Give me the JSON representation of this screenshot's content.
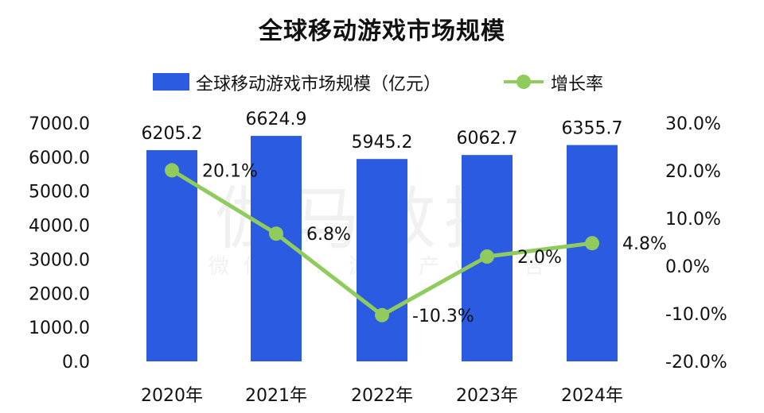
{
  "chart_data": {
    "type": "bar",
    "title": "全球移动游戏市场规模",
    "categories": [
      "2020年",
      "2021年",
      "2022年",
      "2023年",
      "2024年"
    ],
    "series": [
      {
        "name": "全球移动游戏市场规模（亿元）",
        "type": "bar",
        "axis": "left",
        "values": [
          6205.2,
          6624.9,
          5945.2,
          6062.7,
          6355.7
        ],
        "labels": [
          "6205.2",
          "6624.9",
          "5945.2",
          "6062.7",
          "6355.7"
        ],
        "color": "#2a5be0"
      },
      {
        "name": "增长率",
        "type": "line",
        "axis": "right",
        "values": [
          20.1,
          6.8,
          -10.3,
          2.0,
          4.8
        ],
        "labels": [
          "20.1%",
          "6.8%",
          "-10.3%",
          "2.0%",
          "4.8%"
        ],
        "color": "#8fcb5d"
      }
    ],
    "y_left": {
      "range": [
        0,
        7000
      ],
      "ticks": [
        0,
        1000,
        2000,
        3000,
        4000,
        5000,
        6000,
        7000
      ],
      "tick_labels": [
        "0.0",
        "1000.0",
        "2000.0",
        "3000.0",
        "4000.0",
        "5000.0",
        "6000.0",
        "7000.0"
      ]
    },
    "y_right": {
      "range": [
        -20,
        30
      ],
      "ticks": [
        -20,
        -10,
        0,
        10,
        20,
        30
      ],
      "tick_labels": [
        "-20.0%",
        "-10.0%",
        "0.0%",
        "10.0%",
        "20.0%",
        "30.0%"
      ]
    },
    "grid": false,
    "legend_position": "top-center"
  },
  "watermark": {
    "main": "伽马数据",
    "sub": "微信号：游戏产业报告"
  }
}
